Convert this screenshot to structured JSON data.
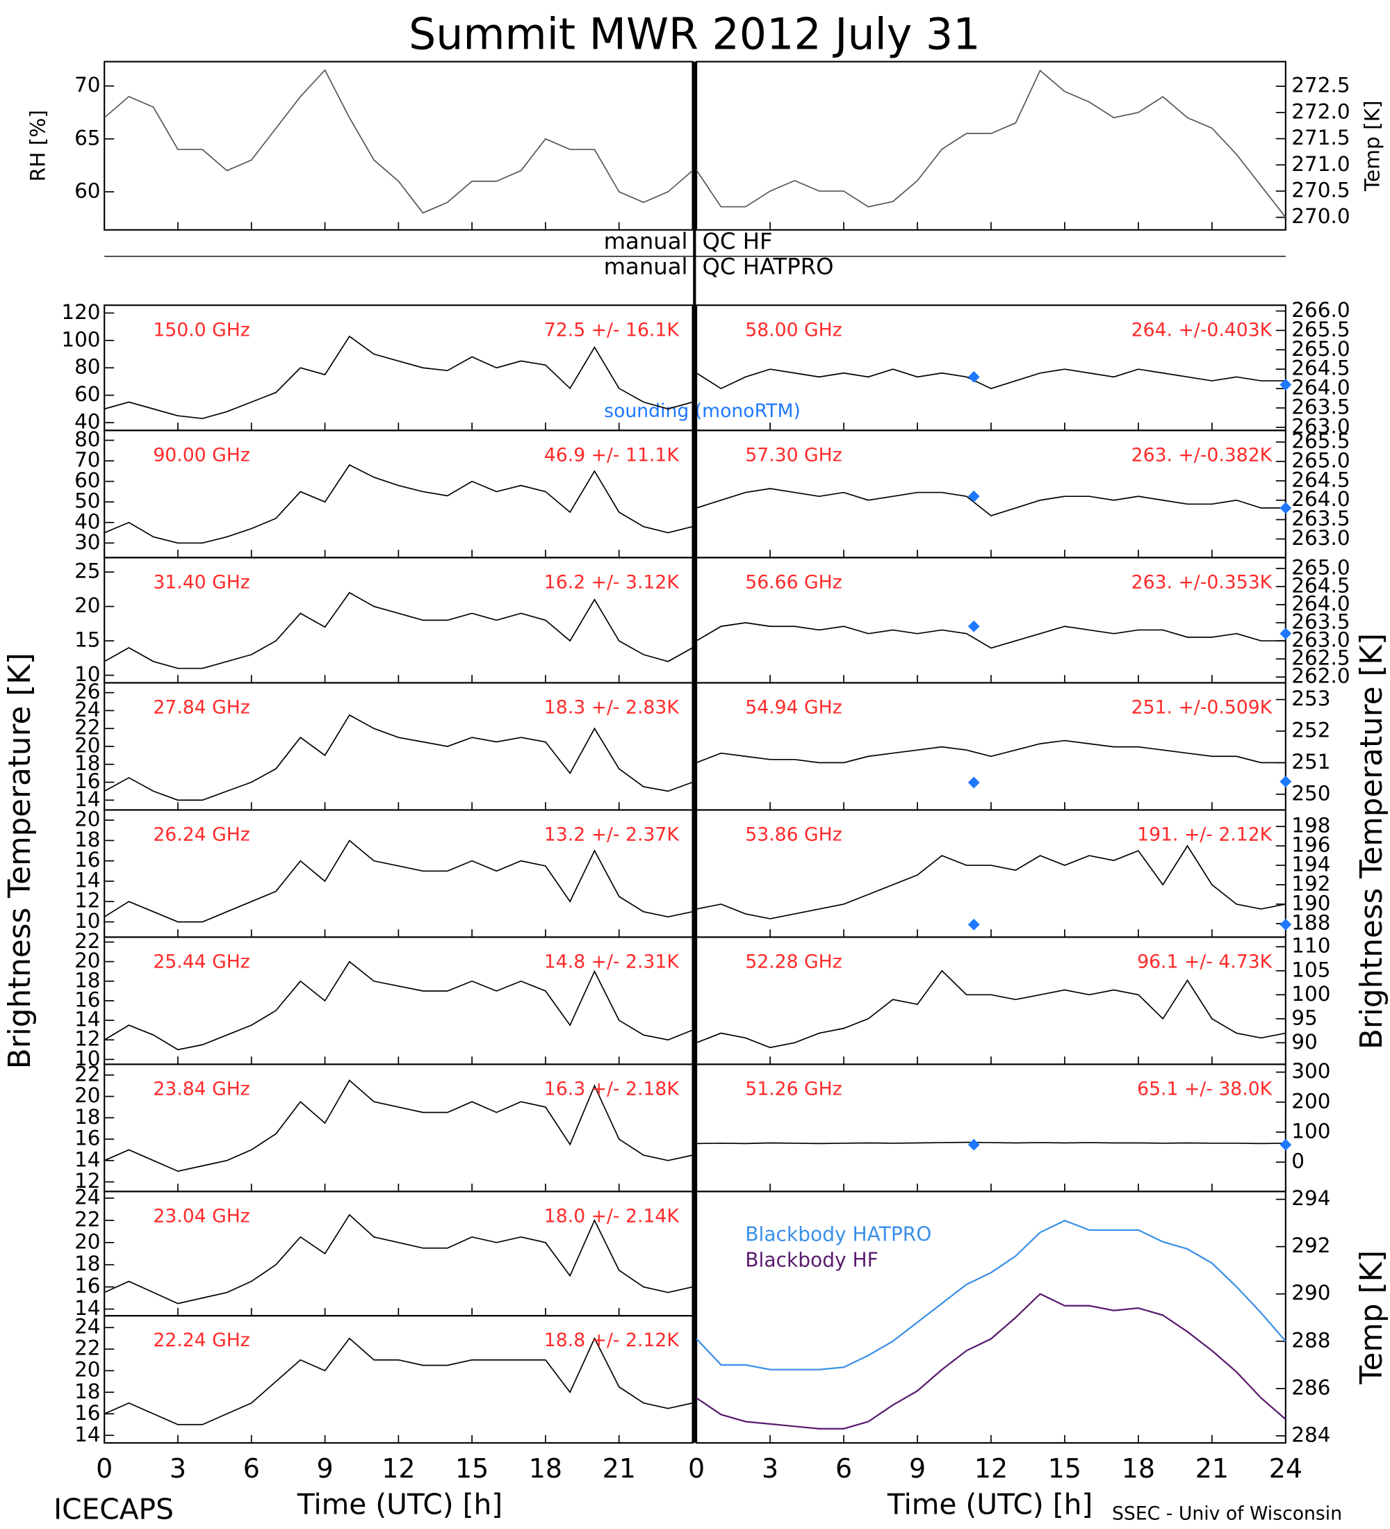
{
  "title": "Summit MWR 2012 July 31",
  "x": [
    0,
    1,
    2,
    3,
    4,
    5,
    6,
    7,
    8,
    9,
    10,
    11,
    12,
    13,
    14,
    15,
    16,
    17,
    18,
    19,
    20,
    21,
    22,
    23,
    24
  ],
  "xlim": [
    0,
    24
  ],
  "xticks_left": [
    0,
    3,
    6,
    9,
    12,
    15,
    18,
    21
  ],
  "xticks_right": [
    0,
    3,
    6,
    9,
    12,
    15,
    18,
    21,
    24
  ],
  "xlabel": "Time (UTC) [h]",
  "ylabel": "Brightness Temperature [K]",
  "qc": [
    {
      "left": "manual",
      "right": "QC HF"
    },
    {
      "left": "manual",
      "right": "QC HATPRO"
    }
  ],
  "sounding_label": "sounding (monoRTM)",
  "footer_left": "ICECAPS",
  "footer_right": "SSEC - Univ of Wisconsin",
  "chart_data": [
    {
      "type": "line",
      "ylabel": "RH [%]",
      "ylim": [
        56.4,
        72.3
      ],
      "yticks": [
        60,
        65,
        70
      ],
      "series": [
        {
          "color": "#555555",
          "values": [
            67,
            69,
            68,
            64,
            64,
            62,
            63,
            66,
            69,
            71.5,
            67,
            63,
            61,
            58,
            59,
            61,
            61,
            62,
            65,
            64,
            64,
            60,
            59,
            60,
            62
          ]
        }
      ]
    },
    {
      "type": "line",
      "ylabel": "Temp [K]",
      "ylim": [
        269.76,
        272.97
      ],
      "yticks": [
        {
          "value": 270,
          "label": "270.0"
        },
        270.5,
        {
          "value": 271,
          "label": "271.0"
        },
        271.5,
        {
          "value": 272,
          "label": "272.0"
        },
        272.5
      ],
      "series": [
        {
          "color": "#555555",
          "values": [
            270.9,
            270.2,
            270.2,
            270.5,
            270.7,
            270.5,
            270.5,
            270.2,
            270.3,
            270.7,
            271.3,
            271.6,
            271.6,
            271.8,
            272.8,
            272.4,
            272.2,
            271.9,
            272.0,
            272.3,
            271.9,
            271.7,
            271.2,
            270.6,
            270.0
          ]
        }
      ]
    },
    {
      "type": "line",
      "ylim": [
        34.3,
        125.7
      ],
      "yticks": [
        40,
        60,
        80,
        100,
        120
      ],
      "stats": "72.5 +/- 16.1K",
      "series": [
        {
          "name": "150.0 GHz",
          "color": "#000000",
          "values": [
            50,
            55,
            50,
            45,
            43,
            48,
            55,
            62,
            80,
            75,
            103,
            90,
            85,
            80,
            78,
            88,
            80,
            85,
            82,
            65,
            95,
            65,
            55,
            50,
            55
          ]
        }
      ]
    },
    {
      "type": "line",
      "ylim": [
        22.9,
        84.8
      ],
      "yticks": [
        30,
        40,
        50,
        60,
        70,
        80
      ],
      "stats": "46.9 +/- 11.1K",
      "series": [
        {
          "name": "90.00 GHz",
          "color": "#000000",
          "values": [
            35,
            40,
            33,
            30,
            30,
            33,
            37,
            42,
            55,
            50,
            68,
            62,
            58,
            55,
            53,
            60,
            55,
            58,
            55,
            45,
            65,
            45,
            38,
            35,
            38
          ]
        }
      ]
    },
    {
      "type": "line",
      "ylim": [
        8.9,
        27.1
      ],
      "yticks": [
        10,
        15,
        20,
        25
      ],
      "stats": "16.2 +/- 3.12K",
      "series": [
        {
          "name": "31.40 GHz",
          "color": "#000000",
          "values": [
            12,
            14,
            12,
            11,
            11,
            12,
            13,
            15,
            19,
            17,
            22,
            20,
            19,
            18,
            18,
            19,
            18,
            19,
            18,
            15,
            21,
            15,
            13,
            12,
            14
          ]
        }
      ]
    },
    {
      "type": "line",
      "ylim": [
        12.9,
        27.1
      ],
      "yticks": [
        14,
        16,
        18,
        20,
        22,
        24,
        26
      ],
      "stats": "18.3 +/- 2.83K",
      "series": [
        {
          "name": "27.84 GHz",
          "color": "#000000",
          "values": [
            15,
            16.5,
            15,
            14,
            14,
            15,
            16,
            17.5,
            21,
            19,
            23.5,
            22,
            21,
            20.5,
            20,
            21,
            20.5,
            21,
            20.5,
            17,
            22,
            17.5,
            15.5,
            15,
            16
          ]
        }
      ]
    },
    {
      "type": "line",
      "ylim": [
        8.5,
        21.0
      ],
      "yticks": [
        10,
        12,
        14,
        16,
        18,
        20
      ],
      "stats": "13.2 +/- 2.37K",
      "series": [
        {
          "name": "26.24 GHz",
          "color": "#000000",
          "values": [
            10.5,
            12,
            11,
            10,
            10,
            11,
            12,
            13,
            16,
            14,
            18,
            16,
            15.5,
            15,
            15,
            16,
            15,
            16,
            15.5,
            12,
            17,
            12.5,
            11,
            10.5,
            11
          ]
        }
      ]
    },
    {
      "type": "line",
      "ylim": [
        9.5,
        22.5
      ],
      "yticks": [
        10,
        12,
        14,
        16,
        18,
        20,
        22
      ],
      "stats": "14.8 +/- 2.31K",
      "series": [
        {
          "name": "25.44 GHz",
          "color": "#000000",
          "values": [
            12,
            13.5,
            12.5,
            11,
            11.5,
            12.5,
            13.5,
            15,
            18,
            16,
            20,
            18,
            17.5,
            17,
            17,
            18,
            17,
            18,
            17,
            13.5,
            19,
            14,
            12.5,
            12,
            13
          ]
        }
      ]
    },
    {
      "type": "line",
      "ylim": [
        11.1,
        23.0
      ],
      "yticks": [
        12,
        14,
        16,
        18,
        20,
        22
      ],
      "stats": "16.3 +/- 2.18K",
      "series": [
        {
          "name": "23.84 GHz",
          "color": "#000000",
          "values": [
            14,
            15,
            14,
            13,
            13.5,
            14,
            15,
            16.5,
            19.5,
            17.5,
            21.5,
            19.5,
            19,
            18.5,
            18.5,
            19.5,
            18.5,
            19.5,
            19,
            15.5,
            21,
            16,
            14.5,
            14,
            14.5
          ]
        }
      ]
    },
    {
      "type": "line",
      "ylim": [
        13.4,
        24.6
      ],
      "yticks": [
        14,
        16,
        18,
        20,
        22,
        24
      ],
      "stats": "18.0 +/- 2.14K",
      "series": [
        {
          "name": "23.04 GHz",
          "color": "#000000",
          "values": [
            15.5,
            16.5,
            15.5,
            14.5,
            15,
            15.5,
            16.5,
            18,
            20.5,
            19,
            22.5,
            20.5,
            20,
            19.5,
            19.5,
            20.5,
            20,
            20.5,
            20,
            17,
            22,
            17.5,
            16,
            15.5,
            16
          ]
        }
      ]
    },
    {
      "type": "line",
      "ylim": [
        13.3,
        25.1
      ],
      "yticks": [
        14,
        16,
        18,
        20,
        22,
        24
      ],
      "stats": "18.8 +/- 2.12K",
      "series": [
        {
          "name": "22.24 GHz",
          "color": "#000000",
          "values": [
            16,
            17,
            16,
            15,
            15,
            16,
            17,
            19,
            21,
            20,
            23,
            21,
            21,
            20.5,
            20.5,
            21,
            21,
            21,
            21,
            18,
            23,
            18.5,
            17,
            16.5,
            17
          ]
        }
      ]
    },
    {
      "type": "line",
      "ylim": [
        262.92,
        266.15
      ],
      "yticks": [
        {
          "value": 263,
          "label": "263.0"
        },
        263.5,
        {
          "value": 264,
          "label": "264.0"
        },
        264.5,
        {
          "value": 265,
          "label": "265.0"
        },
        265.5,
        {
          "value": 266,
          "label": "266.0"
        }
      ],
      "stats": "264. +/-0.403K",
      "sounding": {
        "x": [
          11.3,
          24
        ],
        "values": [
          264.3,
          264.1
        ],
        "color": "#1e78ff"
      },
      "series": [
        {
          "name": "58.00 GHz",
          "color": "#000000",
          "values": [
            264.4,
            264.0,
            264.3,
            264.5,
            264.4,
            264.3,
            264.4,
            264.3,
            264.5,
            264.3,
            264.4,
            264.3,
            264.0,
            264.2,
            264.4,
            264.5,
            264.4,
            264.3,
            264.5,
            264.4,
            264.3,
            264.2,
            264.3,
            264.2,
            264.2
          ]
        }
      ]
    },
    {
      "type": "line",
      "ylim": [
        262.52,
        265.8
      ],
      "yticks": [
        {
          "value": 263,
          "label": "263.0"
        },
        263.5,
        {
          "value": 264,
          "label": "264.0"
        },
        264.5,
        {
          "value": 265,
          "label": "265.0"
        },
        265.5
      ],
      "stats": "263. +/-0.382K",
      "sounding": {
        "x": [
          11.3,
          24
        ],
        "values": [
          264.1,
          263.8
        ],
        "color": "#1e78ff"
      },
      "series": [
        {
          "name": "57.30 GHz",
          "color": "#000000",
          "values": [
            263.8,
            264.0,
            264.2,
            264.3,
            264.2,
            264.1,
            264.2,
            264.0,
            264.1,
            264.2,
            264.2,
            264.1,
            263.6,
            263.8,
            264.0,
            264.1,
            264.1,
            264.0,
            264.1,
            264.0,
            263.9,
            263.9,
            264.0,
            263.8,
            263.8
          ]
        }
      ]
    },
    {
      "type": "line",
      "ylim": [
        261.84,
        265.3
      ],
      "yticks": [
        {
          "value": 262,
          "label": "262.0"
        },
        262.5,
        {
          "value": 263,
          "label": "263.0"
        },
        263.5,
        {
          "value": 264,
          "label": "264.0"
        },
        264.5,
        {
          "value": 265,
          "label": "265.0"
        }
      ],
      "stats": "263. +/-0.353K",
      "sounding": {
        "x": [
          11.3,
          24
        ],
        "values": [
          263.4,
          263.2
        ],
        "color": "#1e78ff"
      },
      "series": [
        {
          "name": "56.66 GHz",
          "color": "#000000",
          "values": [
            263.0,
            263.4,
            263.5,
            263.4,
            263.4,
            263.3,
            263.4,
            263.2,
            263.3,
            263.2,
            263.3,
            263.2,
            262.8,
            263.0,
            263.2,
            263.4,
            263.3,
            263.2,
            263.3,
            263.3,
            263.1,
            263.1,
            263.2,
            263.0,
            263.0
          ]
        }
      ]
    },
    {
      "type": "line",
      "ylim": [
        249.5,
        253.53
      ],
      "yticks": [
        250,
        251,
        252,
        253
      ],
      "stats": "251. +/-0.509K",
      "sounding": {
        "x": [
          11.3,
          24
        ],
        "values": [
          250.37,
          250.4
        ],
        "color": "#1e78ff"
      },
      "series": [
        {
          "name": "54.94 GHz",
          "color": "#000000",
          "values": [
            251.0,
            251.3,
            251.2,
            251.1,
            251.1,
            251.0,
            251.0,
            251.2,
            251.3,
            251.4,
            251.5,
            251.4,
            251.2,
            251.4,
            251.6,
            251.7,
            251.6,
            251.5,
            251.5,
            251.4,
            251.3,
            251.2,
            251.2,
            251.0,
            251.0
          ]
        }
      ]
    },
    {
      "type": "line",
      "ylim": [
        186.6,
        199.7
      ],
      "yticks": [
        188,
        190,
        192,
        194,
        196,
        198
      ],
      "stats": "191. +/- 2.12K",
      "sounding": {
        "x": [
          11.3,
          24
        ],
        "values": [
          187.9,
          187.9
        ],
        "color": "#1e78ff"
      },
      "series": [
        {
          "name": "53.86 GHz",
          "color": "#000000",
          "values": [
            189.5,
            190,
            189,
            188.5,
            189,
            189.5,
            190,
            191,
            192,
            193,
            195,
            194,
            194,
            193.5,
            195,
            194,
            195,
            194.5,
            195.5,
            192,
            196,
            192,
            190,
            189.5,
            190
          ]
        }
      ]
    },
    {
      "type": "line",
      "ylim": [
        85.5,
        112.0
      ],
      "yticks": [
        90,
        95,
        100,
        105,
        110
      ],
      "stats": "96.1 +/- 4.73K",
      "series": [
        {
          "name": "52.28 GHz",
          "color": "#000000",
          "values": [
            90,
            92,
            91,
            89,
            90,
            92,
            93,
            95,
            99,
            98,
            105,
            100,
            100,
            99,
            100,
            101,
            100,
            101,
            100,
            95,
            103,
            95,
            92,
            91,
            92
          ]
        }
      ]
    },
    {
      "type": "line",
      "ylim": [
        -98,
        326
      ],
      "yticks": [
        0,
        100,
        200,
        300
      ],
      "stats": "65.1 +/- 38.0K",
      "sounding": {
        "x": [
          11.3,
          24
        ],
        "values": [
          58,
          58
        ],
        "color": "#1e78ff"
      },
      "series": [
        {
          "name": "51.26 GHz",
          "color": "#000000",
          "values": [
            62,
            63,
            62,
            64,
            63,
            62,
            63,
            64,
            63,
            64,
            65,
            66,
            65,
            64,
            65,
            64,
            65,
            64,
            64,
            63,
            64,
            63,
            63,
            62,
            63
          ]
        }
      ]
    },
    {
      "type": "line",
      "ylabel": "Temp [K]",
      "ylim": [
        283.7,
        294.33
      ],
      "yticks": [
        284,
        286,
        288,
        290,
        292,
        294
      ],
      "series": [
        {
          "name": "Blackbody HATPRO",
          "color": "#3a8fe8",
          "values": [
            288.1,
            287.0,
            287.0,
            286.8,
            286.8,
            286.8,
            286.9,
            287.4,
            288.0,
            288.8,
            289.6,
            290.4,
            290.9,
            291.6,
            292.6,
            293.1,
            292.7,
            292.7,
            292.7,
            292.2,
            291.9,
            291.3,
            290.3,
            289.2,
            288.0
          ]
        },
        {
          "name": "Blackbody HF",
          "color": "#5a1a6e",
          "values": [
            285.6,
            284.9,
            284.6,
            284.5,
            284.4,
            284.3,
            284.3,
            284.6,
            285.3,
            285.9,
            286.8,
            287.6,
            288.1,
            289.0,
            290.0,
            289.5,
            289.5,
            289.3,
            289.4,
            289.1,
            288.4,
            287.6,
            286.7,
            285.6,
            284.7
          ]
        }
      ]
    }
  ]
}
